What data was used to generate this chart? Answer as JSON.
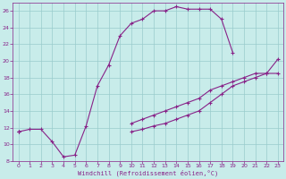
{
  "xlabel": "Windchill (Refroidissement éolien,°C)",
  "bg_color": "#c8ecea",
  "line_color": "#882288",
  "grid_color": "#99cccc",
  "xlim": [
    0,
    23
  ],
  "ylim": [
    8,
    27
  ],
  "xticks": [
    0,
    1,
    2,
    3,
    4,
    5,
    6,
    7,
    8,
    9,
    10,
    11,
    12,
    13,
    14,
    15,
    16,
    17,
    18,
    19,
    20,
    21,
    22,
    23
  ],
  "yticks": [
    8,
    10,
    12,
    14,
    16,
    18,
    20,
    22,
    24,
    26
  ],
  "line1_x": [
    0,
    1,
    2,
    3,
    4,
    5,
    6,
    7,
    8,
    9,
    10,
    11,
    12,
    13,
    14,
    15,
    16,
    17,
    18,
    19,
    20,
    21,
    22,
    23
  ],
  "line1_y": [
    11.5,
    11.8,
    11.8,
    10.3,
    8.5,
    8.7,
    12.2,
    17.0,
    19.5,
    23.0,
    24.5,
    25.0,
    26.0,
    26.0,
    26.5,
    26.2,
    26.2,
    26.2,
    25.0,
    21.0,
    null,
    null,
    null,
    null
  ],
  "line2_x": [
    0,
    1,
    2,
    3,
    4,
    5,
    6,
    7,
    8,
    9,
    10,
    11,
    12,
    13,
    14,
    15,
    16,
    17,
    18,
    19,
    20,
    21,
    22,
    23
  ],
  "line2_y": [
    11.5,
    null,
    null,
    null,
    null,
    null,
    null,
    null,
    null,
    null,
    12.5,
    13.0,
    13.5,
    14.0,
    14.5,
    15.0,
    15.5,
    16.5,
    17.0,
    17.5,
    18.0,
    18.5,
    18.5,
    20.2
  ],
  "line3_x": [
    0,
    1,
    2,
    3,
    4,
    5,
    6,
    7,
    8,
    9,
    10,
    11,
    12,
    13,
    14,
    15,
    16,
    17,
    18,
    19,
    20,
    21,
    22,
    23
  ],
  "line3_y": [
    11.5,
    null,
    null,
    null,
    null,
    null,
    null,
    null,
    null,
    null,
    11.5,
    11.8,
    12.2,
    12.5,
    13.0,
    13.5,
    14.0,
    15.0,
    16.0,
    17.0,
    17.5,
    18.0,
    18.5,
    18.5
  ]
}
